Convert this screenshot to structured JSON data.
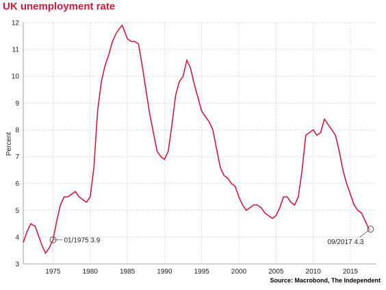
{
  "title": "UK unemployment rate",
  "source": "Source: Macrobond, The Independent",
  "colors": {
    "series": "#d4173a",
    "grid": "#c8c8c8",
    "title": "#d4173a"
  },
  "chart_data": {
    "type": "line",
    "title": "UK unemployment rate",
    "xlabel": "",
    "ylabel": "Percent",
    "xlim": [
      1971.0,
      2018.5
    ],
    "ylim": [
      3,
      12
    ],
    "grid": true,
    "x_ticks": [
      "1975",
      "1980",
      "1985",
      "1990",
      "1995",
      "2000",
      "2005",
      "2010",
      "2015"
    ],
    "y_ticks": [
      "3",
      "4",
      "5",
      "6",
      "7",
      "8",
      "9",
      "10",
      "11",
      "12"
    ],
    "series": [
      {
        "name": "",
        "x": [
          1971.0,
          1971.5,
          1972.0,
          1972.6,
          1973.0,
          1973.5,
          1974.0,
          1974.5,
          1975.0,
          1975.5,
          1976.0,
          1976.5,
          1977.0,
          1977.5,
          1978.0,
          1978.5,
          1979.0,
          1979.5,
          1980.0,
          1980.5,
          1981.0,
          1981.5,
          1982.0,
          1982.5,
          1983.0,
          1983.5,
          1984.0,
          1984.3,
          1984.6,
          1985.0,
          1985.5,
          1986.0,
          1986.5,
          1987.0,
          1987.5,
          1988.0,
          1988.5,
          1989.0,
          1989.5,
          1990.0,
          1990.5,
          1991.0,
          1991.5,
          1992.0,
          1992.5,
          1993.0,
          1993.5,
          1994.0,
          1994.5,
          1995.0,
          1995.5,
          1996.0,
          1996.5,
          1997.0,
          1997.5,
          1998.0,
          1998.5,
          1999.0,
          1999.5,
          2000.0,
          2000.5,
          2001.0,
          2001.5,
          2002.0,
          2002.5,
          2003.0,
          2003.5,
          2004.0,
          2004.5,
          2005.0,
          2005.5,
          2006.0,
          2006.5,
          2007.0,
          2007.5,
          2008.0,
          2008.5,
          2009.0,
          2009.5,
          2010.0,
          2010.5,
          2011.0,
          2011.5,
          2012.0,
          2012.5,
          2013.0,
          2013.5,
          2014.0,
          2014.5,
          2015.0,
          2015.5,
          2016.0,
          2016.5,
          2017.0,
          2017.5
        ],
        "values": [
          3.8,
          4.2,
          4.5,
          4.4,
          4.1,
          3.7,
          3.4,
          3.6,
          3.9,
          4.6,
          5.2,
          5.5,
          5.5,
          5.6,
          5.7,
          5.5,
          5.4,
          5.3,
          5.5,
          6.6,
          8.7,
          9.8,
          10.4,
          10.8,
          11.3,
          11.6,
          11.8,
          11.9,
          11.7,
          11.4,
          11.3,
          11.3,
          11.2,
          10.4,
          9.5,
          8.6,
          7.9,
          7.2,
          7.0,
          6.9,
          7.2,
          8.2,
          9.3,
          9.8,
          10.0,
          10.6,
          10.3,
          9.7,
          9.2,
          8.7,
          8.5,
          8.3,
          8.0,
          7.3,
          6.6,
          6.3,
          6.2,
          6.0,
          5.9,
          5.5,
          5.2,
          5.0,
          5.1,
          5.2,
          5.2,
          5.1,
          4.9,
          4.8,
          4.7,
          4.8,
          5.1,
          5.5,
          5.5,
          5.3,
          5.2,
          5.5,
          6.5,
          7.8,
          7.9,
          8.0,
          7.8,
          7.9,
          8.4,
          8.2,
          8.0,
          7.8,
          7.2,
          6.5,
          6.0,
          5.6,
          5.2,
          5.0,
          4.9,
          4.6,
          4.3
        ]
      }
    ],
    "annotations": [
      {
        "text": "01/1975 3.9",
        "x": 1975.0,
        "y": 3.9
      },
      {
        "text": "09/2017 4.3",
        "x": 2017.7,
        "y": 4.3
      }
    ]
  }
}
